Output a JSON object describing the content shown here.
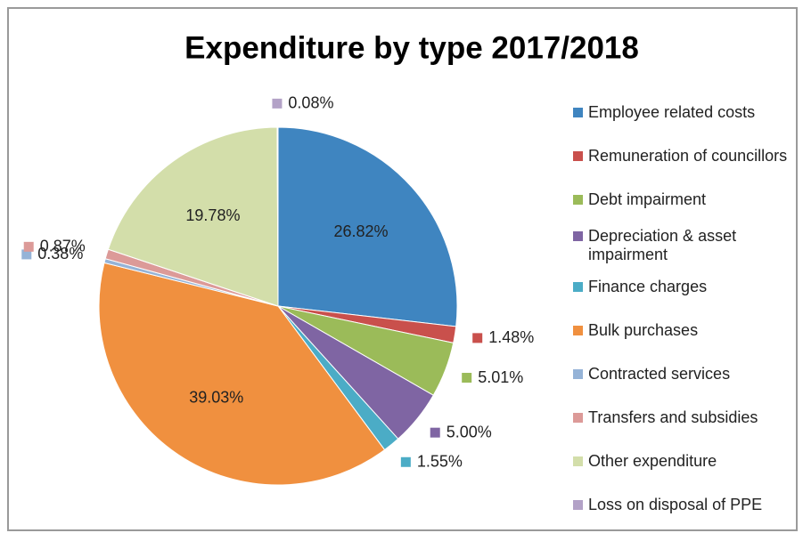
{
  "chart_data": {
    "type": "pie",
    "title": "Expenditure by type 2017/2018",
    "categories": [
      "Employee related costs",
      "Remuneration of councillors",
      "Debt impairment",
      "Depreciation & asset impairment",
      "Finance charges",
      "Bulk purchases",
      "Contracted services",
      "Transfers and subsidies",
      "Other expenditure",
      "Loss on disposal of PPE"
    ],
    "values": [
      26.82,
      1.48,
      5.01,
      5.0,
      1.55,
      39.03,
      0.38,
      0.87,
      19.78,
      0.08
    ],
    "value_labels": [
      "26.82%",
      "1.48%",
      "5.01%",
      "5.00%",
      "1.55%",
      "39.03%",
      "0.38%",
      "0.87%",
      "19.78%",
      "0.08%"
    ],
    "colors": [
      "#3f85c0",
      "#c9504c",
      "#9bbb59",
      "#7f65a3",
      "#4bacc6",
      "#f0903f",
      "#95b3d7",
      "#dc9a98",
      "#d3deaa",
      "#b3a2c7"
    ],
    "legend": "right"
  }
}
